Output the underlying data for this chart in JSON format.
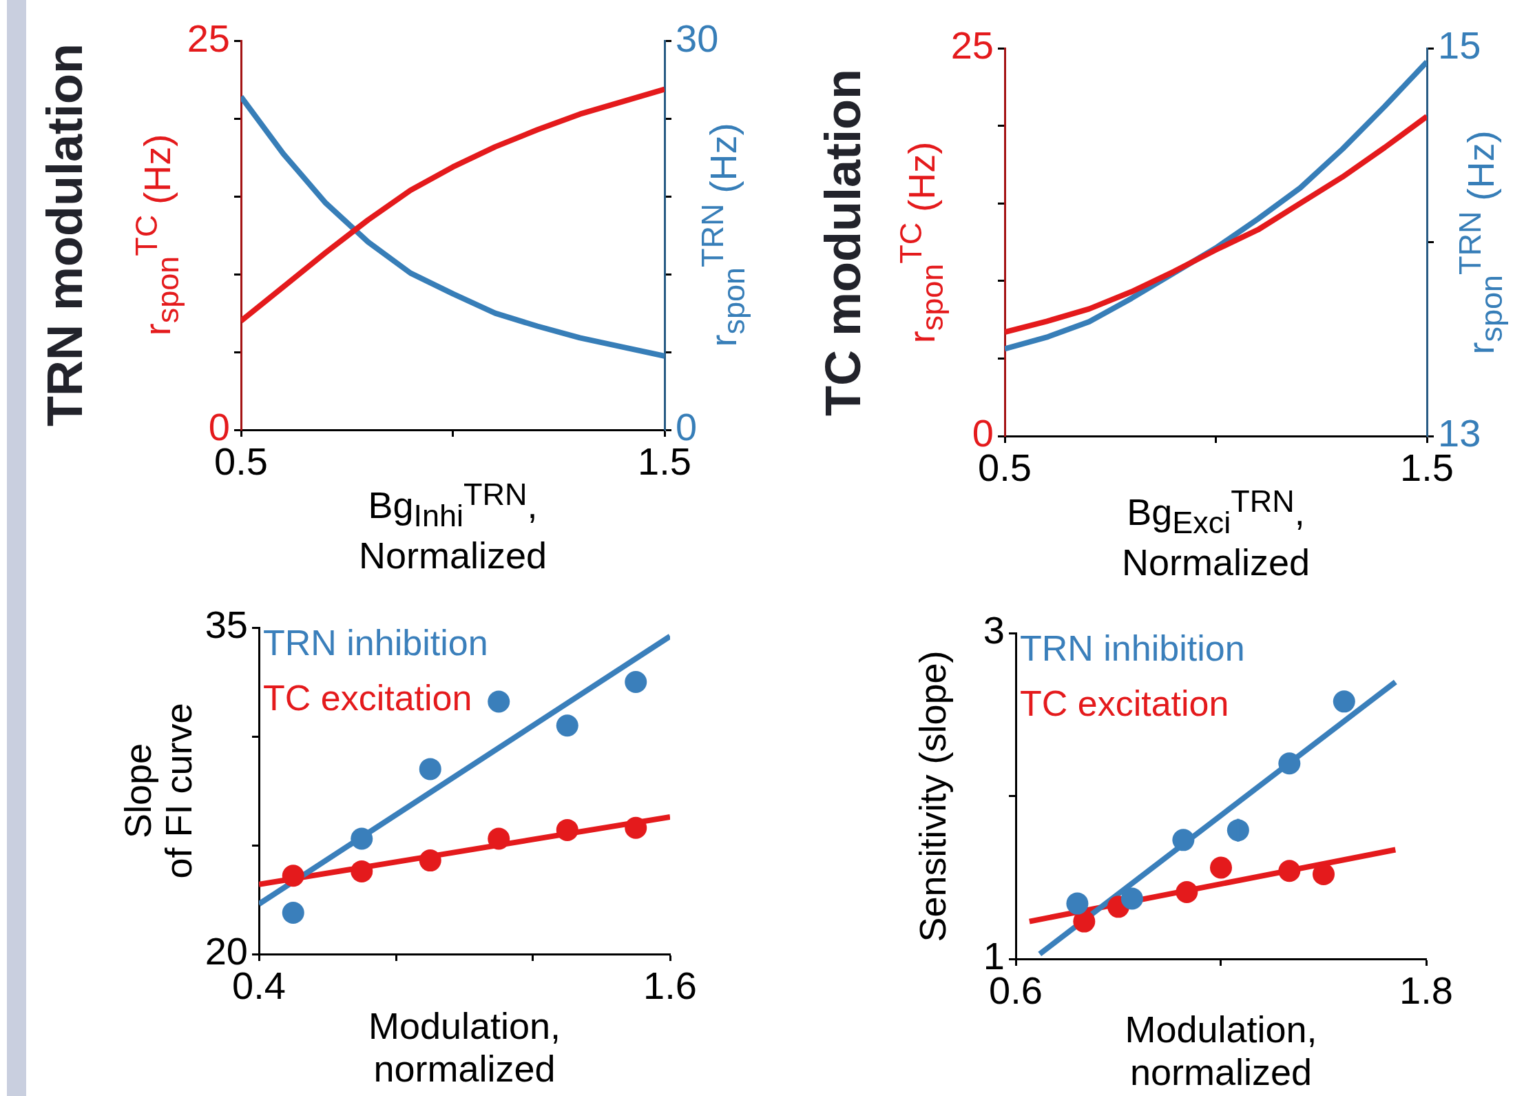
{
  "chart_data": [
    {
      "type": "line",
      "title": "TRN modulation",
      "xlabel": "Bg$_{Inhi}$$^{TRN}$,\nNormalized",
      "ylabel": "r$_{spon}$$^{TC}$ (Hz)",
      "y2label": "r$_{spon}$$^{TRN}$ (Hz)",
      "x": [
        0.5,
        0.6,
        0.7,
        0.8,
        0.9,
        1.0,
        1.1,
        1.2,
        1.3,
        1.4,
        1.5
      ],
      "series": [
        {
          "color": "#e41a1c",
          "values": [
            7.0,
            9.2,
            11.4,
            13.5,
            15.4,
            16.9,
            18.2,
            19.3,
            20.3,
            21.1,
            21.9
          ]
        },
        {
          "color": "#377eb8",
          "axis": "y2",
          "values": [
            25.7,
            21.3,
            17.5,
            14.5,
            12.1,
            10.5,
            9.0,
            8.0,
            7.1,
            6.4,
            5.7
          ]
        }
      ],
      "xlim": [
        0.5,
        1.5
      ],
      "xticks": [
        0.5,
        {
          "value": 1.0,
          "label": null
        },
        1.5
      ],
      "ylim": [
        0,
        25
      ],
      "yticks": [
        0,
        {
          "value": 5,
          "label": null
        },
        {
          "value": 10,
          "label": null
        },
        {
          "value": 15,
          "label": null
        },
        {
          "value": 20,
          "label": null
        },
        25
      ],
      "y2lim": [
        0,
        30
      ],
      "y2ticks": [
        0,
        {
          "value": 6,
          "label": null
        },
        {
          "value": 12,
          "label": null
        },
        {
          "value": 18,
          "label": null
        },
        {
          "value": 24,
          "label": null
        },
        30
      ]
    },
    {
      "type": "line",
      "title": "TC modulation",
      "xlabel": "Bg$_{Exci}$$^{TRN}$,\nNormalized",
      "ylabel": "r$_{spon}$$^{TC}$ (Hz)",
      "y2label": "r$_{spon}$$^{TRN}$ (Hz)",
      "x": [
        0.5,
        0.6,
        0.7,
        0.8,
        0.9,
        1.0,
        1.1,
        1.2,
        1.3,
        1.4,
        1.5
      ],
      "series": [
        {
          "color": "#e41a1c",
          "values": [
            6.7,
            7.4,
            8.2,
            9.3,
            10.6,
            12.0,
            13.3,
            15.0,
            16.7,
            18.6,
            20.6
          ]
        },
        {
          "color": "#377eb8",
          "axis": "y2",
          "values": [
            13.45,
            13.51,
            13.59,
            13.71,
            13.84,
            13.97,
            14.12,
            14.28,
            14.48,
            14.7,
            14.93
          ]
        }
      ],
      "xlim": [
        0.5,
        1.5
      ],
      "xticks": [
        0.5,
        {
          "value": 1.0,
          "label": null
        },
        1.5
      ],
      "ylim": [
        0,
        25
      ],
      "yticks": [
        0,
        {
          "value": 5,
          "label": null
        },
        {
          "value": 10,
          "label": null
        },
        {
          "value": 15,
          "label": null
        },
        {
          "value": 20,
          "label": null
        },
        25
      ],
      "y2lim": [
        13,
        15
      ],
      "y2ticks": [
        13,
        {
          "value": 14,
          "label": null
        },
        15
      ]
    },
    {
      "type": "scatter",
      "xlabel": "Modulation,\nnormalized",
      "ylabel": "Slope\nof FI curve",
      "legend": "top left",
      "series": [
        {
          "name": "TRN inhibition",
          "color": "#3a7fbb",
          "x": [
            0.5,
            0.7,
            0.9,
            1.1,
            1.3,
            1.5
          ],
          "values": [
            21.9,
            25.3,
            28.5,
            31.6,
            30.5,
            32.5
          ]
        },
        {
          "name": "TC excitation",
          "color": "#e41a1c",
          "x": [
            0.5,
            0.7,
            0.9,
            1.1,
            1.3,
            1.5
          ],
          "values": [
            23.6,
            23.8,
            24.3,
            25.3,
            25.7,
            25.8
          ]
        },
        {
          "type": "line",
          "color": "#3a7fbb",
          "x": [
            0.4,
            1.6
          ],
          "values": [
            22.3,
            34.6
          ]
        },
        {
          "type": "line",
          "color": "#e41a1c",
          "x": [
            0.4,
            1.6
          ],
          "values": [
            23.2,
            26.3
          ]
        }
      ],
      "xlim": [
        0.4,
        1.6
      ],
      "xticks": [
        0.4,
        {
          "value": 0.8,
          "label": null
        },
        {
          "value": 1.2,
          "label": null
        },
        1.6
      ],
      "ylim": [
        20,
        35
      ],
      "yticks": [
        20,
        {
          "value": 25,
          "label": null
        },
        {
          "value": 30,
          "label": null
        },
        35
      ]
    },
    {
      "type": "scatter",
      "xlabel": "Modulation,\nnormalized",
      "ylabel": "Sensitivity (slope)",
      "legend": "top left",
      "series": [
        {
          "name": "TRN inhibition",
          "color": "#3a7fbb",
          "x": [
            0.78,
            0.94,
            1.09,
            1.25,
            1.4,
            1.56
          ],
          "values": [
            1.34,
            1.37,
            1.73,
            1.79,
            2.2,
            2.58
          ],
          "errors": [
            null,
            null,
            null,
            0.07,
            null,
            null
          ]
        },
        {
          "name": "TC excitation",
          "color": "#e41a1c",
          "x": [
            0.8,
            0.9,
            1.1,
            1.2,
            1.4,
            1.5
          ],
          "values": [
            1.23,
            1.32,
            1.41,
            1.56,
            1.54,
            1.52
          ]
        },
        {
          "type": "line",
          "color": "#3a7fbb",
          "x": [
            0.67,
            1.71
          ],
          "values": [
            1.03,
            2.7
          ]
        },
        {
          "type": "line",
          "color": "#e41a1c",
          "x": [
            0.64,
            1.71
          ],
          "values": [
            1.23,
            1.67
          ]
        }
      ],
      "xlim": [
        0.6,
        1.8
      ],
      "xticks": [
        0.6,
        {
          "value": 1.2,
          "label": null
        },
        1.8
      ],
      "ylim": [
        1,
        3
      ],
      "yticks": [
        1,
        {
          "value": 2,
          "label": null
        },
        3
      ]
    }
  ]
}
